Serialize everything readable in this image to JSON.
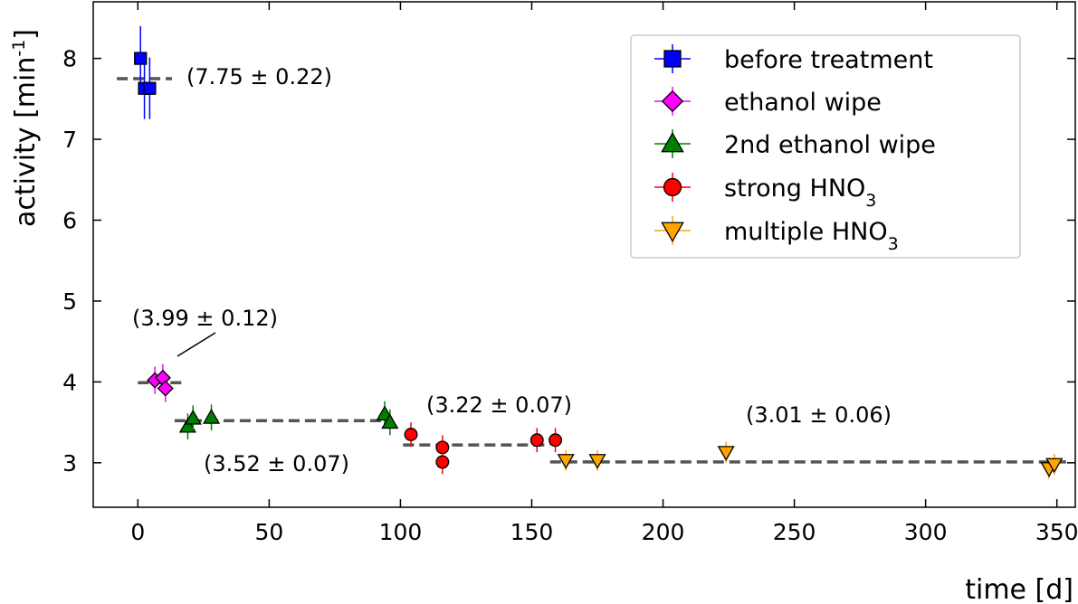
{
  "chart_data": {
    "type": "scatter",
    "xlabel": "time [d]",
    "ylabel": "activity [min⁻¹]",
    "xlim": [
      -17,
      357
    ],
    "ylim": [
      2.45,
      8.7
    ],
    "xticks": [
      0,
      50,
      100,
      150,
      200,
      250,
      300,
      350
    ],
    "yticks": [
      3,
      4,
      5,
      6,
      7,
      8
    ],
    "grid": false,
    "legend_position": "top-right",
    "series": [
      {
        "name": "before treatment",
        "color": "#0000ff",
        "marker": "square",
        "points": [
          {
            "x": 1,
            "y": 8.0,
            "err": 0.4
          },
          {
            "x": 2.5,
            "y": 7.63,
            "err": 0.38
          },
          {
            "x": 4.5,
            "y": 7.63,
            "err": 0.38
          }
        ]
      },
      {
        "name": "ethanol wipe",
        "color": "#ff00ff",
        "marker": "diamond",
        "points": [
          {
            "x": 6.5,
            "y": 4.02,
            "err": 0.17
          },
          {
            "x": 9.5,
            "y": 4.05,
            "err": 0.17
          },
          {
            "x": 10.5,
            "y": 3.92,
            "err": 0.17
          }
        ]
      },
      {
        "name": "2nd ethanol wipe",
        "color": "#008000",
        "marker": "triangle-up",
        "points": [
          {
            "x": 19,
            "y": 3.45,
            "err": 0.16
          },
          {
            "x": 21,
            "y": 3.55,
            "err": 0.16
          },
          {
            "x": 28,
            "y": 3.56,
            "err": 0.16
          },
          {
            "x": 94,
            "y": 3.6,
            "err": 0.16
          },
          {
            "x": 96,
            "y": 3.5,
            "err": 0.16
          }
        ]
      },
      {
        "name": "strong HNO₃",
        "color": "#ff0000",
        "marker": "circle",
        "points": [
          {
            "x": 104,
            "y": 3.35,
            "err": 0.15
          },
          {
            "x": 116,
            "y": 3.19,
            "err": 0.15
          },
          {
            "x": 116,
            "y": 3.01,
            "err": 0.15
          },
          {
            "x": 152,
            "y": 3.28,
            "err": 0.15
          },
          {
            "x": 159,
            "y": 3.28,
            "err": 0.15
          }
        ]
      },
      {
        "name": "multiple HNO₃",
        "color": "#ffa500",
        "marker": "triangle-down",
        "points": [
          {
            "x": 163,
            "y": 3.03,
            "err": 0.13
          },
          {
            "x": 175,
            "y": 3.03,
            "err": 0.13
          },
          {
            "x": 224,
            "y": 3.13,
            "err": 0.13
          },
          {
            "x": 347,
            "y": 2.93,
            "err": 0.13
          },
          {
            "x": 349,
            "y": 2.98,
            "err": 0.13
          }
        ]
      }
    ],
    "fit_lines": [
      {
        "x": [
          -8,
          13
        ],
        "y": 7.75,
        "label": "(7.75 ± 0.22)"
      },
      {
        "x": 0,
        "x_range": [
          0,
          18
        ],
        "y": 3.99,
        "label": "(3.99 ± 0.12)"
      },
      {
        "x_range": [
          14,
          95
        ],
        "y": 3.52,
        "label": "(3.52 ± 0.07)"
      },
      {
        "x_range": [
          101,
          157
        ],
        "y": 3.22,
        "label": "(3.22 ± 0.07)"
      },
      {
        "x_range": [
          157,
          354
        ],
        "y": 3.01,
        "label": "(3.01 ± 0.06)"
      }
    ]
  }
}
